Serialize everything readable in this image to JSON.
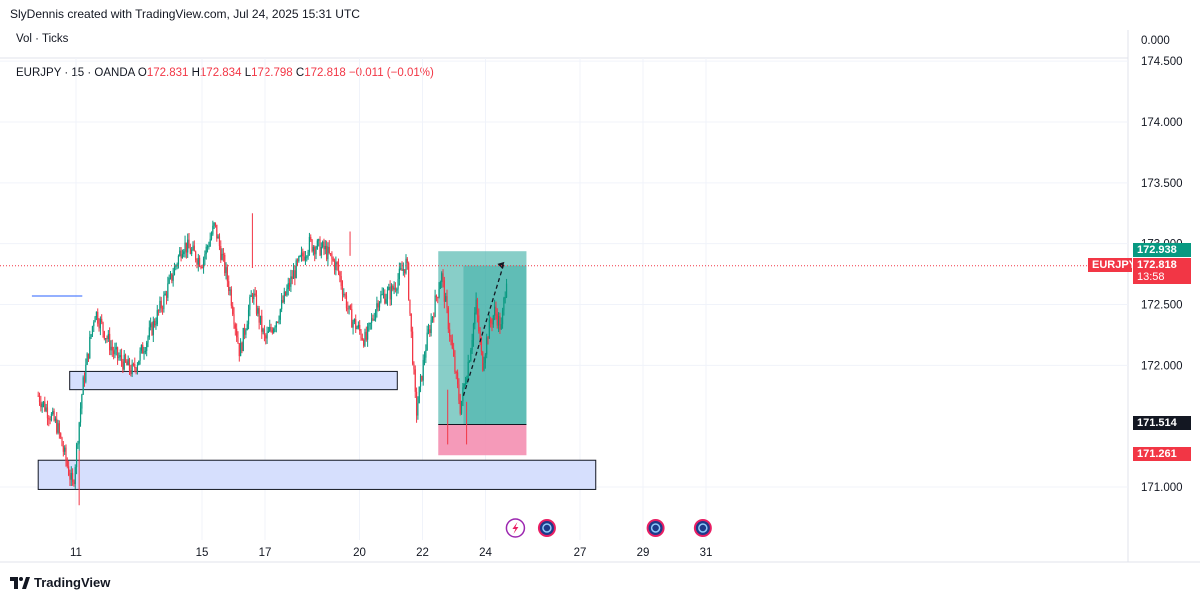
{
  "header": {
    "author_line": "SlyDennis created with TradingView.com, Jul 24, 2025 15:31 UTC"
  },
  "volume_pane": {
    "label": "Vol · Ticks",
    "value": "0.000"
  },
  "ohlc": {
    "symbol_line": "EURJPY · 15 · OANDA",
    "o_label": "O",
    "o_value": "172.831",
    "h_label": "H",
    "h_value": "172.834",
    "l_label": "L",
    "l_value": "172.798",
    "c_label": "C",
    "c_value": "172.818",
    "change": "−0.011 (−0.01%)"
  },
  "footer": {
    "brand": "TradingView"
  },
  "colors": {
    "up": "#089981",
    "down": "#f23645",
    "zone_fill": "#d6dffd",
    "target_fill": "#26a69a",
    "stop_fill": "#f48fb1",
    "price_line": "#f23645",
    "blue_line": "#2962ff"
  },
  "chart_data": {
    "type": "candlestick",
    "symbol": "EURJPY",
    "timeframe": "15",
    "broker": "OANDA",
    "ylim": [
      170.8,
      174.6
    ],
    "y_ticks": [
      "174.500",
      "174.000",
      "173.500",
      "173.000",
      "172.500",
      "172.000",
      "171.000"
    ],
    "x_ticks": [
      "11",
      "15",
      "17",
      "20",
      "22",
      "24",
      "27",
      "29",
      "31"
    ],
    "x_tick_days": [
      11,
      15,
      17,
      20,
      22,
      24,
      27,
      29,
      31
    ],
    "price_path_days": [
      9.8,
      10.4,
      10.9,
      11.2,
      11.6,
      12.2,
      12.8,
      13.4,
      13.8,
      14.4,
      15.0,
      15.4,
      15.9,
      16.2,
      16.6,
      17.0,
      17.4,
      17.9,
      18.4,
      18.9,
      19.3,
      19.7,
      20.2,
      20.6,
      21.0,
      21.5,
      21.8,
      22.1,
      22.3,
      22.6,
      22.9,
      23.2,
      23.5,
      23.7,
      23.9,
      24.1,
      24.3,
      24.5,
      24.7
    ],
    "price_path_values": [
      171.75,
      171.5,
      171.0,
      171.8,
      172.45,
      172.1,
      171.95,
      172.3,
      172.55,
      173.0,
      172.85,
      173.15,
      172.6,
      172.1,
      172.6,
      172.2,
      172.4,
      172.75,
      173.0,
      172.95,
      172.8,
      172.4,
      172.2,
      172.55,
      172.6,
      172.85,
      171.6,
      172.15,
      172.4,
      172.75,
      172.2,
      171.65,
      172.1,
      172.5,
      172.0,
      172.3,
      172.45,
      172.3,
      172.82
    ],
    "blue_line": {
      "price": 172.57,
      "start_day": 9.6,
      "end_day": 11.2
    },
    "zones": [
      {
        "name": "demand-zone-upper",
        "start_day": 10.8,
        "end_day": 21.2,
        "top": 171.95,
        "bottom": 171.8
      },
      {
        "name": "demand-zone-lower",
        "start_day": 9.8,
        "end_day": 27.5,
        "top": 171.22,
        "bottom": 170.98
      }
    ],
    "long_position": {
      "start_day": 22.5,
      "end_day": 25.3,
      "target": 172.938,
      "entry": 171.514,
      "stop": 171.261,
      "entry_start_day": 22.5,
      "entry_end_day": 25.3
    },
    "projection": {
      "from_day": 23.3,
      "from_price": 171.75,
      "to_day": 24.6,
      "to_price": 172.85
    },
    "last_price": 172.818,
    "labels": {
      "target": "172.938",
      "entry": "171.514",
      "stop": "171.261",
      "symbol_tag": "EURJPY",
      "last_price": "172.818",
      "countdown": "13:58"
    },
    "event_icons": [
      "lightning-event-icon",
      "economic-event-icon",
      "economic-event-icon",
      "economic-event-icon"
    ]
  }
}
